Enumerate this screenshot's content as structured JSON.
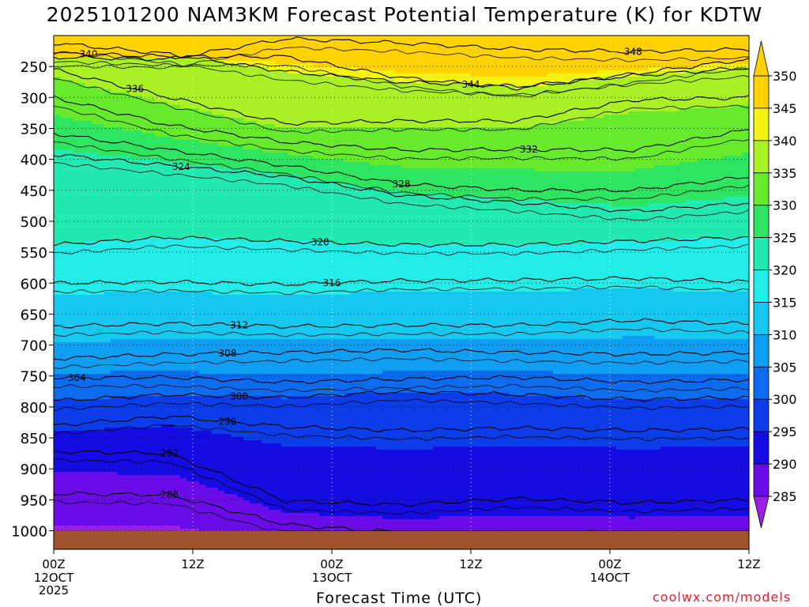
{
  "chart_data": {
    "type": "heatmap",
    "title": "2025101200 NAM3KM Forecast Potential Temperature (K) for KDTW",
    "xlabel": "Forecast Time (UTC)",
    "ylabel": "",
    "credit": "coolwx.com/models",
    "x_range_hours": [
      0,
      60
    ],
    "x_ticks": [
      {
        "hour": 0,
        "top": "00Z",
        "mid": "12OCT",
        "bot": "2025"
      },
      {
        "hour": 12,
        "top": "12Z",
        "mid": "",
        "bot": ""
      },
      {
        "hour": 24,
        "top": "00Z",
        "mid": "13OCT",
        "bot": ""
      },
      {
        "hour": 36,
        "top": "12Z",
        "mid": "",
        "bot": ""
      },
      {
        "hour": 48,
        "top": "00Z",
        "mid": "14OCT",
        "bot": ""
      },
      {
        "hour": 60,
        "top": "12Z",
        "mid": "",
        "bot": ""
      }
    ],
    "y_range_hPa": [
      200,
      1030
    ],
    "y_ticks": [
      250,
      300,
      350,
      400,
      450,
      500,
      550,
      600,
      650,
      700,
      750,
      800,
      850,
      900,
      950,
      1000
    ],
    "y_tick_labels": [
      "250",
      "300",
      "350",
      "400",
      "450",
      "500",
      "550",
      "600",
      "650",
      "700",
      "750",
      "800",
      "850",
      "900",
      "950",
      "1000"
    ],
    "ground_pressure_hPa": 1000,
    "colorbar": {
      "ticks": [
        350,
        345,
        340,
        335,
        330,
        325,
        320,
        315,
        310,
        305,
        300,
        295,
        290,
        285
      ],
      "tick_labels": [
        "350",
        "345",
        "340",
        "335",
        "330",
        "325",
        "320",
        "315",
        "310",
        "305",
        "300",
        "295",
        "290",
        "285"
      ],
      "bins": [
        {
          "min": 345,
          "max": 350,
          "color": "#ffd200"
        },
        {
          "min": 340,
          "max": 345,
          "color": "#f2f213"
        },
        {
          "min": 335,
          "max": 340,
          "color": "#aaf025"
        },
        {
          "min": 330,
          "max": 335,
          "color": "#67ea2c"
        },
        {
          "min": 325,
          "max": 330,
          "color": "#2ee562"
        },
        {
          "min": 320,
          "max": 325,
          "color": "#21e9b0"
        },
        {
          "min": 315,
          "max": 320,
          "color": "#22ece8"
        },
        {
          "min": 310,
          "max": 315,
          "color": "#16c8f0"
        },
        {
          "min": 305,
          "max": 310,
          "color": "#0f9ef2"
        },
        {
          "min": 300,
          "max": 305,
          "color": "#0d6bf0"
        },
        {
          "min": 295,
          "max": 300,
          "color": "#0c3de8"
        },
        {
          "min": 290,
          "max": 295,
          "color": "#150ce4"
        },
        {
          "min": 285,
          "max": 290,
          "color": "#6a0ce8"
        }
      ],
      "under_color": "#9a1ee6",
      "over_color": "#ffd200"
    },
    "contours": [
      {
        "theta": 348,
        "pressure_hPa": [
          235,
          238,
          205,
          212,
          222,
          226,
          222
        ],
        "label": "348",
        "label_hour": 50
      },
      {
        "theta": 344,
        "pressure_hPa": [
          212,
          230,
          258,
          275,
          282,
          265,
          252
        ],
        "label": "344",
        "label_hour": 36
      },
      {
        "theta": 340,
        "pressure_hPa": [
          228,
          234,
          234,
          268,
          285,
          262,
          238
        ],
        "label": "340",
        "label_hour": 3
      },
      {
        "theta": 336,
        "pressure_hPa": [
          255,
          300,
          342,
          338,
          338,
          304,
          300
        ],
        "label": "336",
        "label_hour": 7
      },
      {
        "theta": 332,
        "pressure_hPa": [
          300,
          345,
          372,
          385,
          384,
          385,
          352
        ],
        "label": "332",
        "label_hour": 41
      },
      {
        "theta": 328,
        "pressure_hPa": [
          358,
          385,
          410,
          440,
          450,
          450,
          428
        ],
        "label": "328",
        "label_hour": 30
      },
      {
        "theta": 324,
        "pressure_hPa": [
          392,
          410,
          428,
          458,
          470,
          484,
          470
        ],
        "label": "324",
        "label_hour": 11
      },
      {
        "theta": 320,
        "pressure_hPa": [
          538,
          526,
          532,
          538,
          538,
          532,
          526
        ],
        "label": "320",
        "label_hour": 23
      },
      {
        "theta": 316,
        "pressure_hPa": [
          600,
          598,
          602,
          596,
          595,
          592,
          598
        ],
        "label": "316",
        "label_hour": 24
      },
      {
        "theta": 312,
        "pressure_hPa": [
          670,
          665,
          670,
          668,
          668,
          660,
          666
        ],
        "label": "312",
        "label_hour": 16
      },
      {
        "theta": 308,
        "pressure_hPa": [
          722,
          715,
          712,
          708,
          712,
          715,
          712
        ],
        "label": "308",
        "label_hour": 15
      },
      {
        "theta": 304,
        "pressure_hPa": [
          753,
          752,
          760,
          755,
          752,
          760,
          756
        ],
        "label": "304",
        "label_hour": 2
      },
      {
        "theta": 300,
        "pressure_hPa": [
          790,
          780,
          785,
          775,
          780,
          788,
          785
        ],
        "label": "300",
        "label_hour": 16
      },
      {
        "theta": 296,
        "pressure_hPa": [
          830,
          815,
          832,
          838,
          834,
          838,
          836
        ],
        "label": "296",
        "label_hour": 15
      },
      {
        "theta": 292,
        "pressure_hPa": [
          872,
          875,
          952,
          958,
          948,
          955,
          950
        ],
        "label": "292",
        "label_hour": 10
      },
      {
        "theta": 288,
        "pressure_hPa": [
          940,
          942,
          990,
          1003,
          1003,
          1003,
          1003
        ],
        "label": "288",
        "label_hour": 10
      }
    ],
    "contour_hours": [
      0,
      10,
      20,
      30,
      40,
      50,
      60
    ]
  }
}
